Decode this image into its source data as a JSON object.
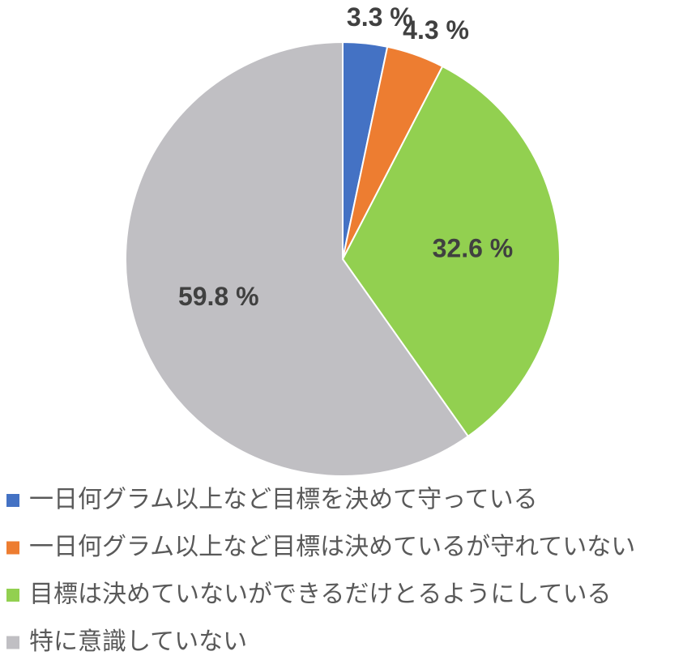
{
  "chart_data": {
    "type": "pie",
    "categories": [
      "一日何グラム以上など目標を決めて守っている",
      "一日何グラム以上など目標は決めているが守れていない",
      "目標は決めていないができるだけとるようにしている",
      "特に意識していない"
    ],
    "values": [
      3.3,
      4.3,
      32.6,
      59.8
    ],
    "value_labels": [
      "3.3 %",
      "4.3 %",
      "32.6 %",
      "59.8 %"
    ],
    "colors": [
      "#4472c4",
      "#ed7d31",
      "#92d050",
      "#c0bfc3"
    ],
    "legend": "bottom"
  }
}
